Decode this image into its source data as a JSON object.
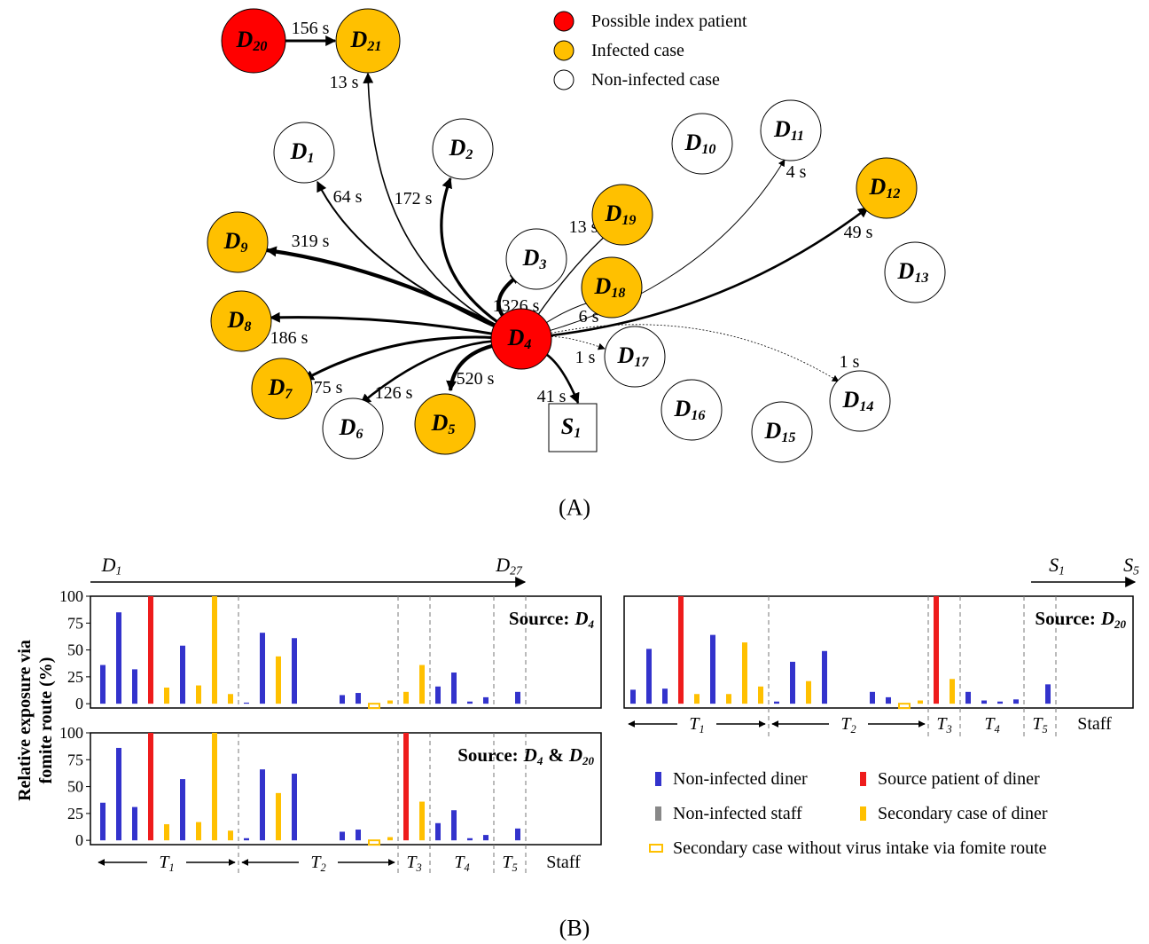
{
  "diagram": {
    "legend": [
      {
        "label": "Possible index patient",
        "color": "#ff0000"
      },
      {
        "label": "Infected case",
        "color": "#ffc000"
      },
      {
        "label": "Non-infected case",
        "color": "#ffffff"
      }
    ],
    "nodes": [
      {
        "name": "D",
        "index": "20",
        "fill": "#ff0000"
      },
      {
        "name": "D",
        "index": "21",
        "fill": "#ffc000"
      },
      {
        "name": "D",
        "index": "1",
        "fill": "#ffffff"
      },
      {
        "name": "D",
        "index": "2",
        "fill": "#ffffff"
      },
      {
        "name": "D",
        "index": "9",
        "fill": "#ffc000"
      },
      {
        "name": "D",
        "index": "3",
        "fill": "#ffffff"
      },
      {
        "name": "D",
        "index": "19",
        "fill": "#ffc000"
      },
      {
        "name": "D",
        "index": "18",
        "fill": "#ffc000"
      },
      {
        "name": "D",
        "index": "8",
        "fill": "#ffc000"
      },
      {
        "name": "D",
        "index": "4",
        "fill": "#ff0000"
      },
      {
        "name": "D",
        "index": "17",
        "fill": "#ffffff"
      },
      {
        "name": "D",
        "index": "7",
        "fill": "#ffc000"
      },
      {
        "name": "D",
        "index": "6",
        "fill": "#ffffff"
      },
      {
        "name": "D",
        "index": "5",
        "fill": "#ffc000"
      },
      {
        "name": "S",
        "index": "1",
        "fill": "#ffffff",
        "shape": "square"
      },
      {
        "name": "D",
        "index": "16",
        "fill": "#ffffff"
      },
      {
        "name": "D",
        "index": "15",
        "fill": "#ffffff"
      },
      {
        "name": "D",
        "index": "14",
        "fill": "#ffffff"
      },
      {
        "name": "D",
        "index": "10",
        "fill": "#ffffff"
      },
      {
        "name": "D",
        "index": "11",
        "fill": "#ffffff"
      },
      {
        "name": "D",
        "index": "12",
        "fill": "#ffc000"
      },
      {
        "name": "D",
        "index": "13",
        "fill": "#ffffff"
      }
    ],
    "edges": [
      {
        "from": 0,
        "to": 1,
        "label": "156 s"
      },
      {
        "from": 9,
        "to": 1,
        "label": "13 s"
      },
      {
        "from": 9,
        "to": 2,
        "label": "64 s"
      },
      {
        "from": 9,
        "to": 3,
        "label": "172 s"
      },
      {
        "from": 9,
        "to": 4,
        "label": "319 s"
      },
      {
        "from": 9,
        "to": 5,
        "label": "1326 s"
      },
      {
        "from": 9,
        "to": 6,
        "label": "13 s"
      },
      {
        "from": 9,
        "to": 7,
        "label": "6 s"
      },
      {
        "from": 9,
        "to": 19,
        "label": "4 s"
      },
      {
        "from": 9,
        "to": 20,
        "label": "49 s"
      },
      {
        "from": 9,
        "to": 8,
        "label": "186 s"
      },
      {
        "from": 9,
        "to": 11,
        "label": "75 s"
      },
      {
        "from": 9,
        "to": 12,
        "label": "126 s"
      },
      {
        "from": 9,
        "to": 13,
        "label": "520 s"
      },
      {
        "from": 9,
        "to": 14,
        "label": "41 s"
      },
      {
        "from": 9,
        "to": 10,
        "label": "1 s"
      },
      {
        "from": 9,
        "to": 17,
        "label": "1 s"
      }
    ],
    "caption": "(A)"
  },
  "bar_figure": {
    "ylabel": [
      "Relative exposure via",
      "fomite route (%)"
    ],
    "diner_range": {
      "from": {
        "name": "D",
        "index": "1"
      },
      "to": {
        "name": "D",
        "index": "27"
      }
    },
    "staff_range": {
      "from": {
        "name": "S",
        "index": "1"
      },
      "to": {
        "name": "S",
        "index": "5"
      }
    },
    "legend": [
      {
        "label": "Non-infected diner",
        "color": "#3333cc"
      },
      {
        "label": "Source patient of diner",
        "color": "#ee1c1c"
      },
      {
        "label": "Non-infected staff",
        "color": "#888888"
      },
      {
        "label": "Secondary case of diner",
        "color": "#ffc000"
      },
      {
        "label": "Secondary case without virus intake via fomite route",
        "color": "#ffc000",
        "fill": "none"
      }
    ],
    "caption": "(B)"
  },
  "chart_data": [
    {
      "type": "bar",
      "title": {
        "text": "Source:",
        "sources": [
          {
            "name": "D",
            "index": "4"
          }
        ]
      },
      "ylim": [
        -4,
        100
      ],
      "yticks": [
        0,
        25,
        50,
        75,
        100
      ],
      "series": [
        {
          "color": "#3333cc",
          "values": [
            36,
            85,
            32,
            null,
            null,
            54,
            null,
            null,
            null,
            1,
            66,
            null,
            61,
            null,
            null,
            8,
            10,
            null,
            null,
            null,
            null,
            16,
            29,
            2,
            6,
            null,
            11,
            null,
            null,
            null,
            null,
            null
          ]
        },
        {
          "color": "#ee1c1c",
          "values": [
            null,
            null,
            null,
            100,
            null,
            null,
            null,
            null,
            null,
            null,
            null,
            null,
            null,
            null,
            null,
            null,
            null,
            null,
            null,
            null,
            null,
            null,
            null,
            null,
            null,
            null,
            null,
            null,
            null,
            null,
            null,
            null
          ]
        },
        {
          "color": "#ffc000",
          "values": [
            null,
            null,
            null,
            null,
            15,
            null,
            17,
            100,
            9,
            null,
            null,
            44,
            null,
            null,
            null,
            null,
            null,
            null,
            3,
            11,
            36,
            null,
            null,
            null,
            null,
            null,
            null,
            null,
            null,
            null,
            null,
            null
          ]
        },
        {
          "color": "#ffc000",
          "fill": "none",
          "values": [
            null,
            null,
            null,
            null,
            null,
            null,
            null,
            null,
            null,
            null,
            null,
            null,
            null,
            null,
            null,
            null,
            null,
            0,
            null,
            null,
            null,
            null,
            null,
            null,
            null,
            null,
            null,
            null,
            null,
            null,
            null,
            null
          ]
        }
      ]
    },
    {
      "type": "bar",
      "title": {
        "text": "Source:",
        "sources": [
          {
            "name": "D",
            "index": "4"
          },
          {
            "name": "D",
            "index": "20"
          }
        ],
        "separator": "&"
      },
      "ylim": [
        -4,
        100
      ],
      "yticks": [
        0,
        25,
        50,
        75,
        100
      ],
      "groups": [
        {
          "name": "T",
          "index": "1"
        },
        {
          "name": "T",
          "index": "2"
        },
        {
          "name": "T",
          "index": "3"
        },
        {
          "name": "T",
          "index": "4"
        },
        {
          "name": "T",
          "index": "5"
        },
        {
          "name": "Staff"
        }
      ],
      "series": [
        {
          "color": "#3333cc",
          "values": [
            35,
            86,
            31,
            null,
            null,
            57,
            null,
            null,
            null,
            2,
            66,
            null,
            62,
            null,
            null,
            8,
            10,
            null,
            null,
            null,
            null,
            16,
            28,
            2,
            5,
            null,
            11,
            null,
            null,
            null,
            null,
            null
          ]
        },
        {
          "color": "#ee1c1c",
          "values": [
            null,
            null,
            null,
            100,
            null,
            null,
            null,
            null,
            null,
            null,
            null,
            null,
            null,
            null,
            null,
            null,
            null,
            null,
            null,
            100,
            null,
            null,
            null,
            null,
            null,
            null,
            null,
            null,
            null,
            null,
            null,
            null
          ]
        },
        {
          "color": "#ffc000",
          "values": [
            null,
            null,
            null,
            null,
            15,
            null,
            17,
            100,
            9,
            null,
            null,
            44,
            null,
            null,
            null,
            null,
            null,
            null,
            3,
            null,
            36,
            null,
            null,
            null,
            null,
            null,
            null,
            null,
            null,
            null,
            null,
            null
          ]
        },
        {
          "color": "#ffc000",
          "fill": "none",
          "values": [
            null,
            null,
            null,
            null,
            null,
            null,
            null,
            null,
            null,
            null,
            null,
            null,
            null,
            null,
            null,
            null,
            null,
            0,
            null,
            null,
            null,
            null,
            null,
            null,
            null,
            null,
            null,
            null,
            null,
            null,
            null,
            null
          ]
        }
      ]
    },
    {
      "type": "bar",
      "title": {
        "text": "Source:",
        "sources": [
          {
            "name": "D",
            "index": "20"
          }
        ]
      },
      "ylim": [
        -4,
        100
      ],
      "groups": [
        {
          "name": "T",
          "index": "1"
        },
        {
          "name": "T",
          "index": "2"
        },
        {
          "name": "T",
          "index": "3"
        },
        {
          "name": "T",
          "index": "4"
        },
        {
          "name": "T",
          "index": "5"
        },
        {
          "name": "Staff"
        }
      ],
      "series": [
        {
          "color": "#3333cc",
          "values": [
            13,
            51,
            14,
            null,
            null,
            64,
            null,
            null,
            null,
            2,
            39,
            null,
            49,
            null,
            null,
            11,
            6,
            null,
            null,
            null,
            null,
            11,
            3,
            2,
            4,
            null,
            18,
            null,
            null,
            null,
            null,
            null
          ]
        },
        {
          "color": "#ee1c1c",
          "values": [
            null,
            null,
            null,
            100,
            null,
            null,
            null,
            null,
            null,
            null,
            null,
            null,
            null,
            null,
            null,
            null,
            null,
            null,
            null,
            100,
            null,
            null,
            null,
            null,
            null,
            null,
            null,
            null,
            null,
            null,
            null,
            null
          ]
        },
        {
          "color": "#ffc000",
          "values": [
            null,
            null,
            null,
            null,
            9,
            null,
            9,
            57,
            16,
            null,
            null,
            21,
            null,
            null,
            null,
            null,
            null,
            null,
            3,
            null,
            23,
            null,
            null,
            null,
            null,
            null,
            null,
            null,
            null,
            null,
            null,
            null
          ]
        },
        {
          "color": "#ffc000",
          "fill": "none",
          "values": [
            null,
            null,
            null,
            null,
            null,
            null,
            null,
            null,
            null,
            null,
            null,
            null,
            null,
            null,
            null,
            null,
            null,
            0,
            null,
            null,
            null,
            null,
            null,
            null,
            null,
            null,
            null,
            null,
            null,
            null,
            null,
            null
          ]
        }
      ]
    }
  ]
}
